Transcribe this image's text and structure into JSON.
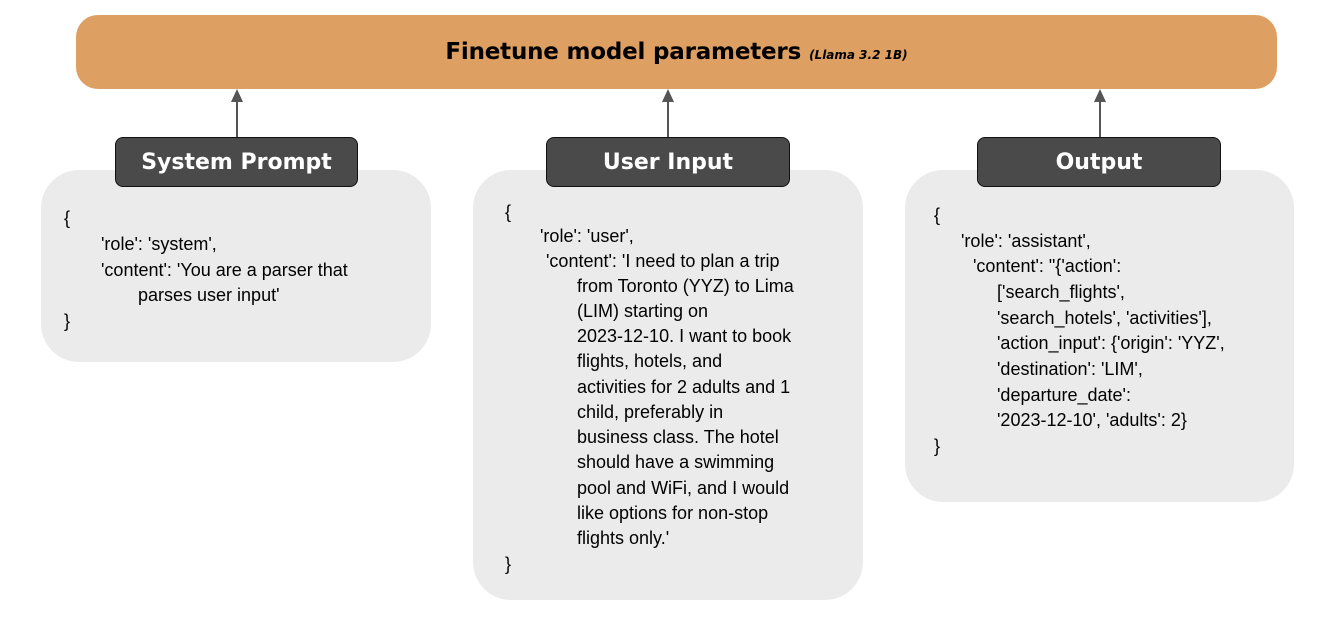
{
  "banner": {
    "title": "Finetune model parameters",
    "subtitle": "(Llama 3.2 1B)",
    "color": "#DE9F62"
  },
  "colors": {
    "header_fill": "#4A4A4A",
    "card_fill": "#EBEBEB",
    "arrow": "#555555"
  },
  "system_prompt": {
    "header": "System Prompt",
    "lines": {
      "l1": "{",
      "l2": "'role': 'system',",
      "l3": "'content': 'You are a parser that",
      "l4": "parses user input'",
      "l5": "}"
    }
  },
  "user_input": {
    "header": "User Input",
    "lines": {
      "l1": "{",
      "l2": "'role': 'user',",
      "l3": "'content': 'I need to plan a trip",
      "l4": "from Toronto (YYZ) to Lima",
      "l5": "(LIM) starting on",
      "l6": "2023-12-10. I want to book",
      "l7": "flights, hotels, and",
      "l8": "activities for 2 adults and 1",
      "l9": "child, preferably in",
      "l10": "business class. The hotel",
      "l11": "should have a swimming",
      "l12": "pool and WiFi, and I would",
      "l13": "like options for non-stop",
      "l14": "flights only.'",
      "l15": "}"
    }
  },
  "output": {
    "header": "Output",
    "lines": {
      "l1": "{",
      "l2": "'role': 'assistant',",
      "l3": "'content': \"{'action':",
      "l4": "['search_flights',",
      "l5": "'search_hotels', 'activities'],",
      "l6": "'action_input': {'origin': 'YYZ',",
      "l7": "'destination': 'LIM',",
      "l8": "'departure_date':",
      "l9": "'2023-12-10', 'adults': 2}",
      "l10": "}"
    }
  }
}
